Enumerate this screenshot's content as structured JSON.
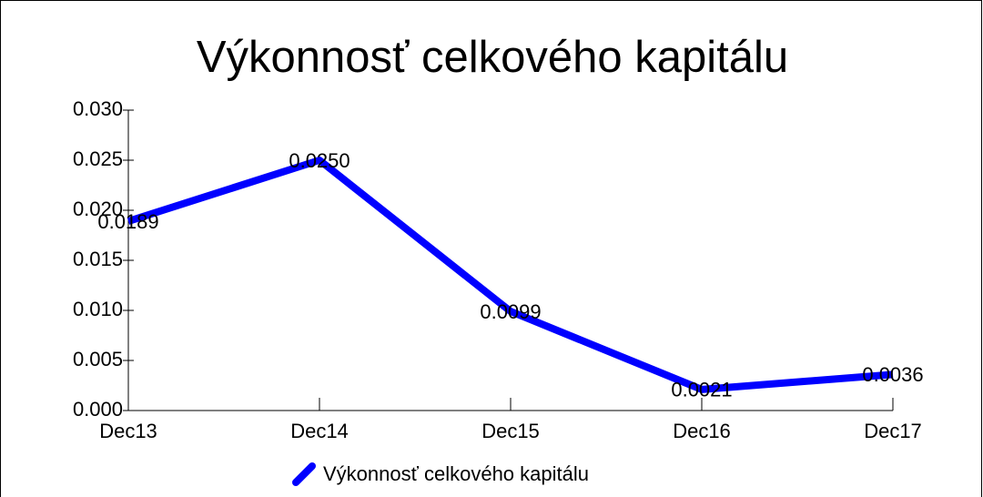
{
  "chart_data": {
    "type": "line",
    "title": "Výkonnosť celkového kapitálu",
    "categories": [
      "Dec13",
      "Dec14",
      "Dec15",
      "Dec16",
      "Dec17"
    ],
    "series": [
      {
        "name": "Výkonnosť celkového kapitálu",
        "color": "#0000ff",
        "values": [
          0.0189,
          0.025,
          0.0099,
          0.0021,
          0.0036
        ],
        "value_labels": [
          "0.0189",
          "0.0250",
          "0.0099",
          "0.0021",
          "0.0036"
        ]
      }
    ],
    "ylim": [
      0,
      0.03
    ],
    "yticks": [
      {
        "value": 0,
        "label": "0.000"
      },
      {
        "value": 0.005,
        "label": "0.005"
      },
      {
        "value": 0.01,
        "label": "0.010"
      },
      {
        "value": 0.015,
        "label": "0.015"
      },
      {
        "value": 0.02,
        "label": "0.020"
      },
      {
        "value": 0.025,
        "label": "0.025"
      },
      {
        "value": 0.03,
        "label": "0.030"
      }
    ],
    "grid": false,
    "legend": "bottom"
  }
}
